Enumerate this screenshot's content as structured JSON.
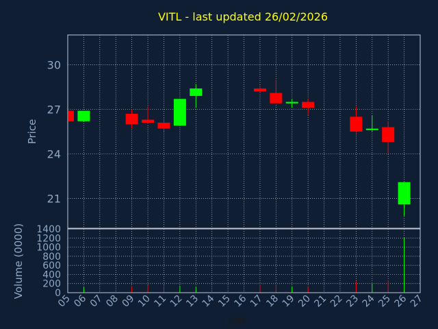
{
  "chart_data": {
    "type": "candlestick",
    "title": "VITL - last updated 26/02/2026",
    "xlabel": "Day",
    "price_axis": {
      "label": "Price",
      "ticks": [
        21,
        24,
        27,
        30
      ],
      "ylim": [
        19.0,
        32.0
      ]
    },
    "volume_axis": {
      "label": "Volume (0000)",
      "ticks": [
        0,
        200,
        400,
        600,
        800,
        1000,
        1200,
        1400
      ],
      "ylim": [
        0,
        1400
      ]
    },
    "x_tick_labels": [
      "05",
      "06",
      "07",
      "08",
      "09",
      "10",
      "11",
      "12",
      "13",
      "14",
      "15",
      "16",
      "17",
      "18",
      "19",
      "20",
      "21",
      "22",
      "23",
      "24",
      "25",
      "26",
      "27"
    ],
    "xlim": [
      5,
      27
    ],
    "grid": true,
    "colors": {
      "up": "#00ff00",
      "down": "#ff0000",
      "title": "#ffff00",
      "axis_text": "#8fa8c8",
      "grid": "#c0c8d8",
      "background": "#0f1e32"
    },
    "candles": [
      {
        "day": 5,
        "open": 26.9,
        "high": 26.9,
        "low": 26.2,
        "close": 26.2
      },
      {
        "day": 6,
        "open": 26.2,
        "high": 26.9,
        "low": 26.2,
        "close": 26.9
      },
      {
        "day": 9,
        "open": 26.7,
        "high": 27.0,
        "low": 25.7,
        "close": 26.0
      },
      {
        "day": 10,
        "open": 26.3,
        "high": 27.2,
        "low": 26.0,
        "close": 26.1
      },
      {
        "day": 11,
        "open": 26.1,
        "high": 26.4,
        "low": 25.5,
        "close": 25.7
      },
      {
        "day": 12,
        "open": 25.9,
        "high": 27.7,
        "low": 25.9,
        "close": 27.7
      },
      {
        "day": 13,
        "open": 27.9,
        "high": 28.7,
        "low": 27.1,
        "close": 28.4
      },
      {
        "day": 17,
        "open": 28.4,
        "high": 28.6,
        "low": 28.1,
        "close": 28.2
      },
      {
        "day": 18,
        "open": 28.1,
        "high": 29.0,
        "low": 27.4,
        "close": 27.4
      },
      {
        "day": 19,
        "open": 27.4,
        "high": 27.7,
        "low": 27.1,
        "close": 27.5
      },
      {
        "day": 20,
        "open": 27.5,
        "high": 27.7,
        "low": 26.6,
        "close": 27.1
      },
      {
        "day": 23,
        "open": 26.5,
        "high": 27.2,
        "low": 25.4,
        "close": 25.5
      },
      {
        "day": 24,
        "open": 25.6,
        "high": 26.6,
        "low": 25.5,
        "close": 25.7
      },
      {
        "day": 25,
        "open": 25.8,
        "high": 26.2,
        "low": 24.0,
        "close": 24.8
      },
      {
        "day": 26,
        "open": 20.6,
        "high": 22.1,
        "low": 19.8,
        "close": 22.1
      }
    ],
    "volume": [
      {
        "day": 5,
        "value": 20
      },
      {
        "day": 6,
        "value": 120
      },
      {
        "day": 9,
        "value": 130
      },
      {
        "day": 10,
        "value": 160
      },
      {
        "day": 11,
        "value": 160
      },
      {
        "day": 12,
        "value": 150
      },
      {
        "day": 13,
        "value": 130
      },
      {
        "day": 17,
        "value": 180
      },
      {
        "day": 18,
        "value": 180
      },
      {
        "day": 19,
        "value": 140
      },
      {
        "day": 20,
        "value": 130
      },
      {
        "day": 23,
        "value": 250
      },
      {
        "day": 24,
        "value": 200
      },
      {
        "day": 25,
        "value": 270
      },
      {
        "day": 26,
        "value": 1200
      }
    ]
  }
}
